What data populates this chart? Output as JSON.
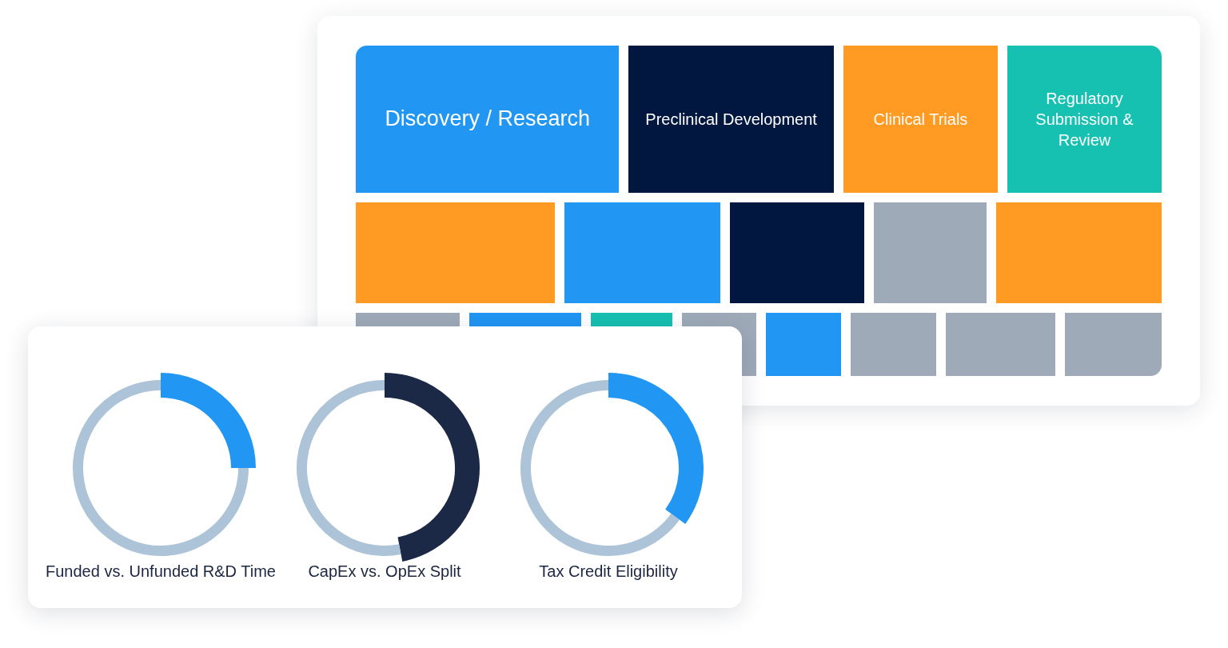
{
  "chart_data": [
    {
      "type": "other",
      "categories": [
        "Discovery / Research",
        "Preclinical Development",
        "Clinical Trials",
        "Regulatory Submission & Review",
        null,
        null,
        null,
        null,
        null,
        null,
        null,
        null,
        null,
        null,
        null,
        null,
        null
      ],
      "colors": [
        "#2196f3",
        "#021740",
        "#ff9a23",
        "#17c1b2",
        "#ff9a23",
        "#2196f3",
        "#021740",
        "#9eaab8",
        "#ff9a23",
        "#9eaab8",
        "#2196f3",
        "#17c1b2",
        "#9eaab8",
        "#2196f3",
        "#9eaab8",
        "#9eaab8",
        "#9eaab8"
      ]
    },
    {
      "type": "donut",
      "title": "Funded vs. Unfunded R&D Time",
      "categories": [
        null,
        null
      ],
      "values": [
        25,
        75
      ],
      "colors": [
        "#2196f3",
        "#adc4d8"
      ]
    },
    {
      "type": "donut",
      "title": "CapEx vs. OpEx Split",
      "categories": [
        null,
        null
      ],
      "values": [
        47,
        53
      ],
      "colors": [
        "#1b2946",
        "#adc4d8"
      ]
    },
    {
      "type": "donut",
      "title": "Tax Credit Eligibility",
      "categories": [
        null,
        null
      ],
      "values": [
        35,
        65
      ],
      "colors": [
        "#2196f3",
        "#adc4d8"
      ]
    }
  ]
}
